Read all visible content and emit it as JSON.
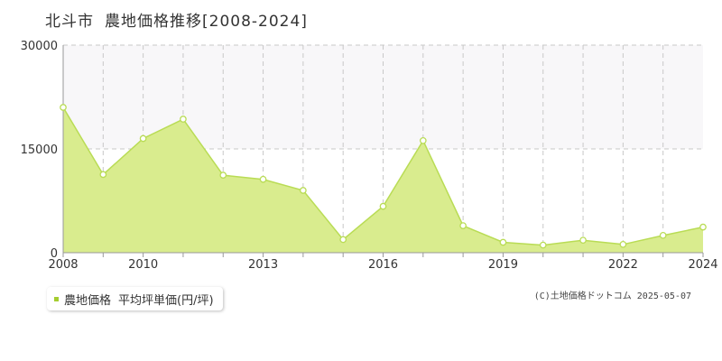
{
  "title": {
    "city": "北斗市",
    "label": "農地価格推移[2008-2024]"
  },
  "legend": {
    "series_label": "農地価格",
    "metric_label": "平均坪単価(円/坪)",
    "color": "#a5cd30"
  },
  "credit": "(C)土地価格ドットコム 2025-05-07",
  "chart_data": {
    "type": "area",
    "title": "",
    "xlabel": "",
    "ylabel": "",
    "x": [
      2008,
      2009,
      2010,
      2011,
      2012,
      2013,
      2014,
      2015,
      2016,
      2017,
      2018,
      2019,
      2020,
      2021,
      2022,
      2023,
      2024
    ],
    "series": [
      {
        "name": "農地価格",
        "values": [
          21000,
          11300,
          16500,
          19300,
          11200,
          10600,
          9000,
          1900,
          6700,
          16200,
          3900,
          1500,
          1100,
          1800,
          1200,
          2500,
          3700
        ]
      }
    ],
    "ylim": [
      0,
      30000
    ],
    "yticks": [
      "0",
      "15000",
      "30000"
    ],
    "xticks": [
      "2008",
      "2010",
      "2013",
      "2016",
      "2019",
      "2022",
      "2024"
    ],
    "grid": true,
    "fill_color": "#d9ec8e",
    "line_color": "#b9dc55",
    "band_color": "#f8f7f9"
  }
}
